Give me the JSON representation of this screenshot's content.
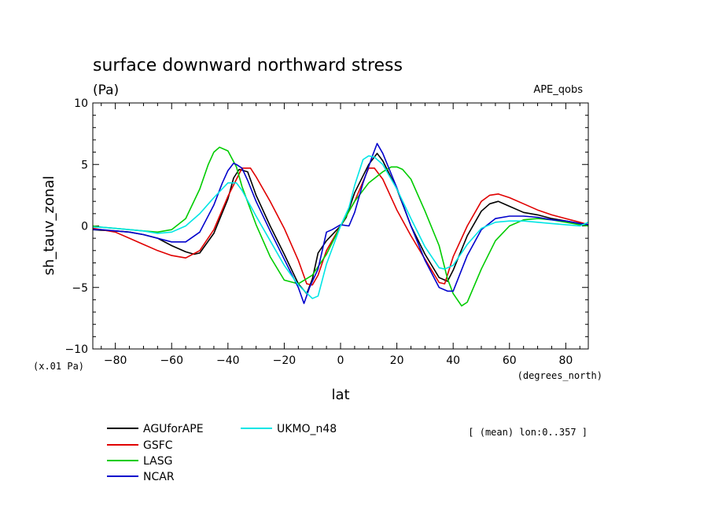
{
  "chart_data": {
    "type": "line",
    "title": "surface downward northward stress",
    "units": "(Pa)",
    "dataset": "APE_qobs",
    "ylabel": "sh_tauv_zonal",
    "yscale_note": "(x.01 Pa)",
    "xlabel": "lat",
    "xunit": "(degrees_north)",
    "annotation": "[ (mean) lon:0..357 ]",
    "xlim": [
      -88,
      88
    ],
    "ylim": [
      -10,
      10
    ],
    "xticks": [
      -80,
      -60,
      -40,
      -20,
      0,
      20,
      40,
      60,
      80
    ],
    "yticks": [
      -10,
      -5,
      0,
      5,
      10
    ],
    "xtick_labels": [
      "−80",
      "−60",
      "−40",
      "−20",
      "0",
      "20",
      "40",
      "60",
      "80"
    ],
    "ytick_labels": [
      "−10",
      "−5",
      "0",
      "5",
      "10"
    ],
    "grid": false,
    "legend": "bottom-left",
    "series": [
      {
        "name": "AGUforAPE",
        "color": "#000000",
        "x": [
          -88,
          -85,
          -80,
          -75,
          -70,
          -65,
          -60,
          -55,
          -52,
          -50,
          -45,
          -40,
          -38,
          -36,
          -33,
          -30,
          -25,
          -20,
          -15,
          -12,
          -10,
          -8,
          -5,
          0,
          2,
          5,
          10,
          13,
          15,
          20,
          25,
          30,
          35,
          38,
          40,
          45,
          50,
          53,
          56,
          60,
          65,
          70,
          75,
          80,
          85,
          88
        ],
        "y": [
          -0.3,
          -0.35,
          -0.4,
          -0.5,
          -0.7,
          -1.0,
          -1.6,
          -2.1,
          -2.3,
          -2.2,
          -0.6,
          2.2,
          3.9,
          4.6,
          4.4,
          2.5,
          0.0,
          -2.3,
          -4.7,
          -5.5,
          -4.3,
          -2.2,
          -1.2,
          0.0,
          0.7,
          2.7,
          5.0,
          5.9,
          5.3,
          3.0,
          0.0,
          -2.3,
          -4.2,
          -4.5,
          -3.6,
          -0.8,
          1.2,
          1.8,
          2.0,
          1.6,
          1.1,
          0.9,
          0.6,
          0.4,
          0.2,
          0.1
        ]
      },
      {
        "name": "GSFC",
        "color": "#e00000",
        "x": [
          -88,
          -85,
          -80,
          -75,
          -70,
          -65,
          -60,
          -55,
          -50,
          -45,
          -40,
          -35,
          -32,
          -30,
          -25,
          -20,
          -15,
          -12,
          -10,
          -8,
          -5,
          0,
          5,
          10,
          12,
          15,
          20,
          25,
          30,
          35,
          37,
          40,
          45,
          50,
          53,
          56,
          60,
          65,
          70,
          75,
          80,
          85,
          88
        ],
        "y": [
          -0.2,
          -0.3,
          -0.5,
          -1.0,
          -1.5,
          -2.0,
          -2.4,
          -2.6,
          -2.0,
          -0.3,
          2.4,
          4.7,
          4.7,
          4.0,
          2.0,
          -0.2,
          -2.8,
          -4.7,
          -4.8,
          -4.0,
          -2.0,
          0.0,
          2.0,
          4.7,
          4.7,
          3.8,
          1.3,
          -0.8,
          -2.7,
          -4.6,
          -4.7,
          -2.5,
          0.0,
          2.0,
          2.5,
          2.6,
          2.3,
          1.8,
          1.3,
          0.9,
          0.6,
          0.3,
          0.1
        ]
      },
      {
        "name": "LASG",
        "color": "#00cc00",
        "x": [
          -88,
          -85,
          -80,
          -75,
          -70,
          -65,
          -60,
          -55,
          -50,
          -47,
          -45,
          -43,
          -40,
          -37,
          -35,
          -30,
          -25,
          -20,
          -15,
          -10,
          -5,
          0,
          5,
          10,
          15,
          18,
          20,
          22,
          25,
          30,
          35,
          38,
          40,
          43,
          45,
          50,
          55,
          60,
          65,
          70,
          75,
          80,
          85,
          88
        ],
        "y": [
          0.0,
          -0.1,
          -0.2,
          -0.3,
          -0.4,
          -0.5,
          -0.3,
          0.6,
          3.0,
          5.0,
          6.0,
          6.4,
          6.1,
          4.8,
          3.2,
          0.1,
          -2.5,
          -4.4,
          -4.7,
          -4.0,
          -2.3,
          0.0,
          2.0,
          3.5,
          4.4,
          4.8,
          4.8,
          4.6,
          3.8,
          1.2,
          -1.6,
          -4.3,
          -5.5,
          -6.5,
          -6.2,
          -3.5,
          -1.2,
          0.0,
          0.5,
          0.6,
          0.5,
          0.3,
          0.1,
          0.0
        ]
      },
      {
        "name": "NCAR",
        "color": "#0000cc",
        "x": [
          -88,
          -85,
          -80,
          -75,
          -70,
          -65,
          -60,
          -55,
          -50,
          -45,
          -42,
          -40,
          -38,
          -37,
          -35,
          -33,
          -30,
          -25,
          -20,
          -15,
          -13,
          -11,
          -8,
          -5,
          -3,
          0,
          3,
          5,
          8,
          11,
          13,
          15,
          20,
          25,
          30,
          35,
          38,
          40,
          45,
          50,
          55,
          60,
          65,
          70,
          75,
          80,
          85,
          88
        ],
        "y": [
          -0.3,
          -0.3,
          -0.4,
          -0.5,
          -0.7,
          -1.0,
          -1.3,
          -1.3,
          -0.5,
          1.7,
          3.5,
          4.5,
          5.1,
          5.0,
          4.7,
          3.7,
          2.0,
          -0.4,
          -2.7,
          -5.0,
          -6.3,
          -5.0,
          -3.5,
          -0.5,
          -0.3,
          0.1,
          0.0,
          1.1,
          3.5,
          5.5,
          6.7,
          5.9,
          3.1,
          0.0,
          -2.8,
          -5.0,
          -5.3,
          -5.3,
          -2.4,
          -0.3,
          0.6,
          0.8,
          0.8,
          0.7,
          0.5,
          0.4,
          0.2,
          0.1
        ]
      },
      {
        "name": "UKMO_n48",
        "color": "#00e5e5",
        "x": [
          -88,
          -85,
          -80,
          -75,
          -70,
          -65,
          -60,
          -55,
          -50,
          -45,
          -40,
          -37,
          -35,
          -30,
          -25,
          -20,
          -15,
          -10,
          -8,
          -5,
          0,
          3,
          5,
          8,
          10,
          12,
          15,
          20,
          25,
          30,
          35,
          37,
          40,
          45,
          50,
          55,
          60,
          65,
          70,
          75,
          80,
          85,
          88
        ],
        "y": [
          -0.1,
          -0.1,
          -0.2,
          -0.3,
          -0.4,
          -0.6,
          -0.5,
          0.0,
          1.0,
          2.3,
          3.5,
          3.5,
          2.9,
          0.8,
          -1.2,
          -3.2,
          -4.8,
          -5.9,
          -5.7,
          -3.1,
          0.0,
          1.5,
          3.3,
          5.4,
          5.7,
          5.6,
          5.0,
          3.0,
          0.6,
          -1.7,
          -3.4,
          -3.5,
          -3.2,
          -1.5,
          -0.2,
          0.3,
          0.4,
          0.4,
          0.3,
          0.2,
          0.1,
          0.0,
          0.3
        ]
      }
    ]
  }
}
